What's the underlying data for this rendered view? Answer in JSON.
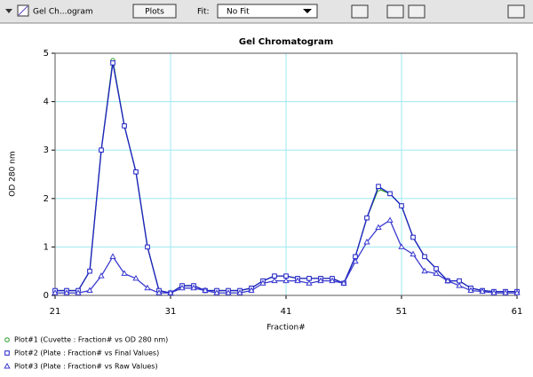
{
  "toolbar": {
    "graph_name": "Gel Ch...ogram",
    "plots_button": "Plots",
    "fit_label": "Fit:",
    "fit_value": "No Fit"
  },
  "chart_data": {
    "type": "line",
    "title": "Gel Chromatogram",
    "x_label": "Fraction#",
    "y_label": "OD 280 nm",
    "x": [
      21,
      22,
      23,
      24,
      25,
      26,
      27,
      28,
      29,
      30,
      31,
      32,
      33,
      34,
      35,
      36,
      37,
      38,
      39,
      40,
      41,
      42,
      43,
      44,
      45,
      46,
      47,
      48,
      49,
      50,
      51,
      52,
      53,
      54,
      55,
      56,
      57,
      58,
      59,
      60,
      61
    ],
    "xlim": [
      21,
      61
    ],
    "xticks": [
      21,
      31,
      41,
      51,
      61
    ],
    "ylim": [
      0,
      5
    ],
    "yticks": [
      0,
      1,
      2,
      3,
      4,
      5
    ],
    "grid": true,
    "series": [
      {
        "name": "Plot#1 (Cuvette : Fraction# vs OD 280 nm)",
        "color": "#2a9a2a",
        "marker": "circle",
        "values": [
          0.1,
          0.1,
          0.1,
          0.5,
          3.0,
          4.85,
          3.5,
          2.55,
          1.0,
          0.1,
          0.05,
          0.2,
          0.2,
          0.1,
          0.1,
          0.1,
          0.1,
          0.15,
          0.3,
          0.4,
          0.4,
          0.35,
          0.35,
          0.35,
          0.35,
          0.25,
          0.8,
          1.6,
          2.2,
          2.1,
          1.85,
          1.2,
          0.8,
          0.55,
          0.3,
          0.3,
          0.15,
          0.1,
          0.08,
          0.08,
          0.08
        ]
      },
      {
        "name": "Plot#2 (Plate : Fraction# vs Final Values)",
        "color": "#2020c8",
        "marker": "square",
        "values": [
          0.1,
          0.1,
          0.1,
          0.5,
          3.0,
          4.8,
          3.5,
          2.55,
          1.0,
          0.1,
          0.05,
          0.2,
          0.2,
          0.1,
          0.1,
          0.1,
          0.1,
          0.15,
          0.3,
          0.4,
          0.4,
          0.35,
          0.35,
          0.35,
          0.35,
          0.25,
          0.8,
          1.6,
          2.25,
          2.1,
          1.85,
          1.2,
          0.8,
          0.55,
          0.3,
          0.3,
          0.15,
          0.1,
          0.08,
          0.08,
          0.08
        ]
      },
      {
        "name": "Plot#3 (Plate : Fraction# vs Raw Values)",
        "color": "#3a3ad0",
        "marker": "triangle",
        "values": [
          0.05,
          0.05,
          0.05,
          0.1,
          0.4,
          0.8,
          0.45,
          0.35,
          0.15,
          0.05,
          0.05,
          0.15,
          0.15,
          0.1,
          0.05,
          0.05,
          0.05,
          0.1,
          0.25,
          0.3,
          0.3,
          0.3,
          0.25,
          0.3,
          0.3,
          0.25,
          0.7,
          1.1,
          1.4,
          1.55,
          1.0,
          0.85,
          0.5,
          0.45,
          0.3,
          0.2,
          0.1,
          0.08,
          0.05,
          0.05,
          0.05
        ]
      }
    ]
  }
}
